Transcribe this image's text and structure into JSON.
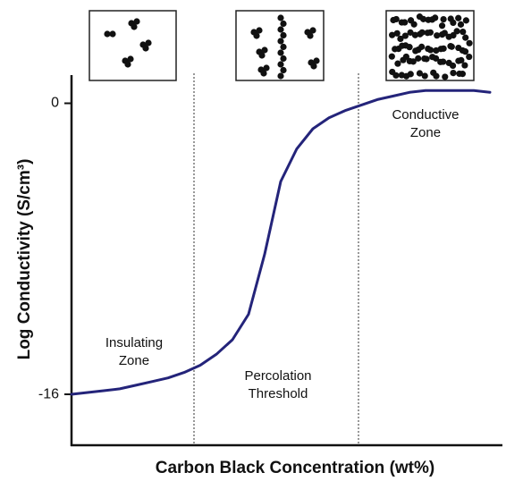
{
  "chart_data": {
    "type": "line",
    "y_label": "Log Conductivity (S/cm³)",
    "x_label": "Carbon Black Concentration (wt%)",
    "annotations": [
      {
        "lines": [
          "Insulating",
          "Zone"
        ]
      },
      {
        "lines": [
          "Percolation",
          "Threshold"
        ]
      },
      {
        "lines": [
          "Conductive",
          "Zone"
        ]
      }
    ],
    "categories": [
      null,
      null,
      null,
      null,
      null,
      null,
      null,
      null,
      null,
      null,
      null,
      null,
      null,
      null,
      null,
      null,
      null,
      null,
      null,
      null,
      null,
      null,
      null,
      null,
      null,
      null,
      null
    ],
    "values": [
      -16.0,
      -15.9,
      -15.8,
      -15.7,
      -15.5,
      -15.3,
      -15.1,
      -14.8,
      -14.4,
      -13.8,
      -13.0,
      -11.6,
      -8.3,
      -4.3,
      -2.5,
      -1.4,
      -0.8,
      -0.4,
      -0.1,
      0.2,
      0.4,
      0.6,
      0.7,
      0.7,
      0.7,
      0.7,
      0.6
    ],
    "color": "#24247a",
    "ylim": [
      -18.8,
      1.5
    ],
    "yticks": [
      0,
      -16
    ]
  }
}
